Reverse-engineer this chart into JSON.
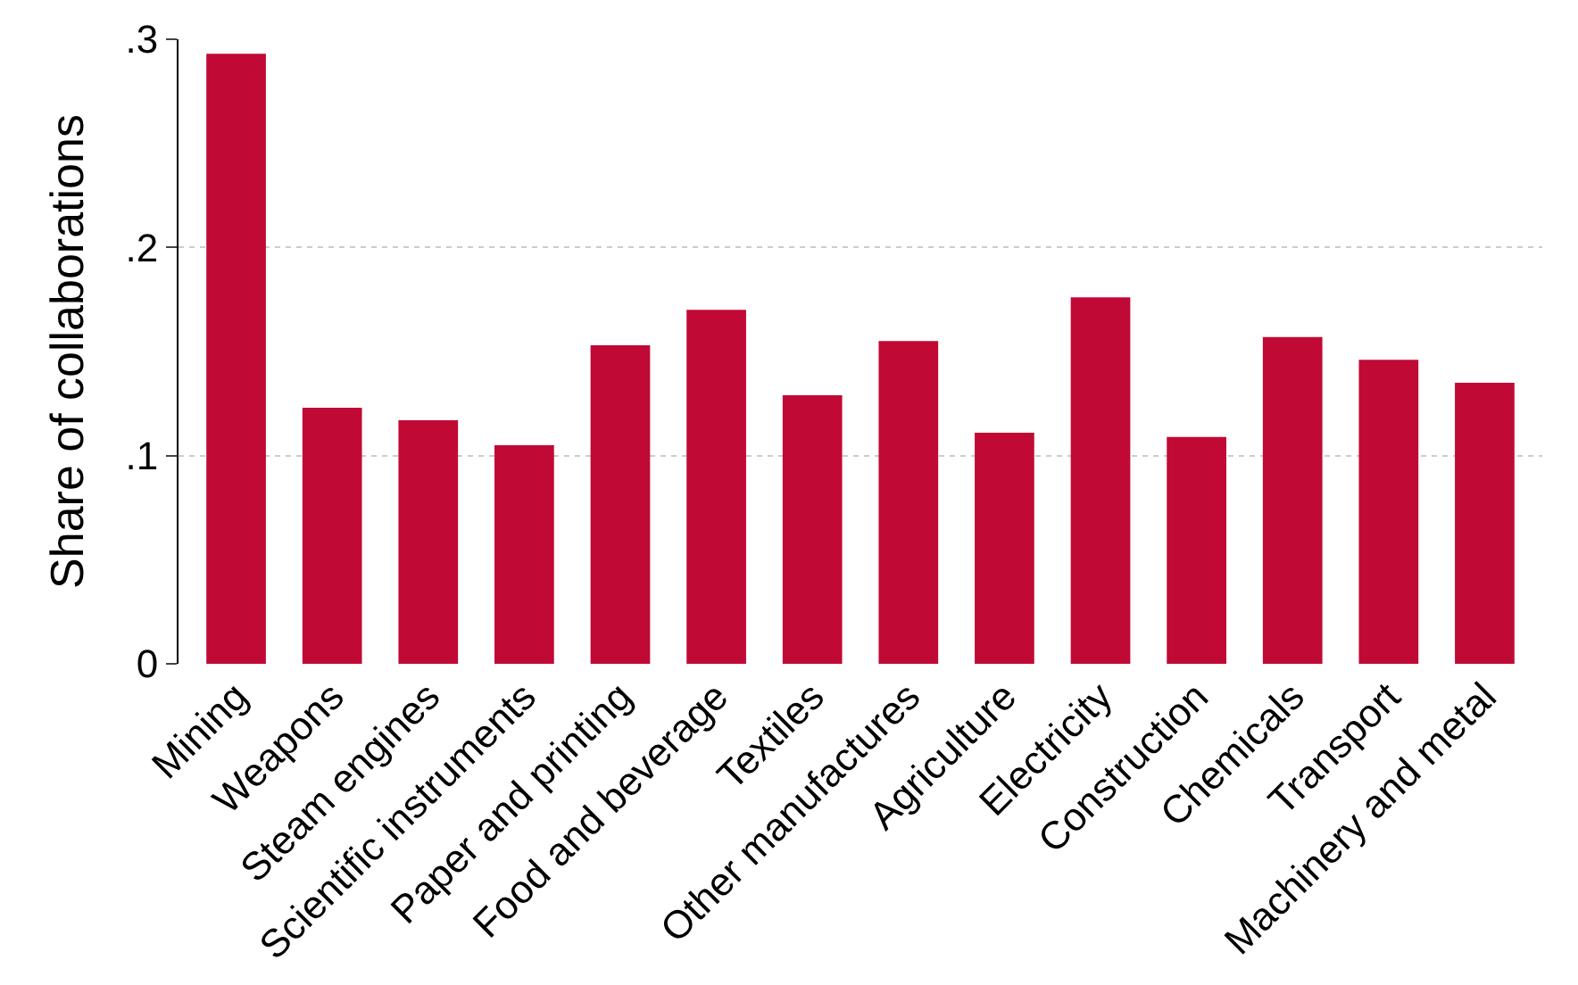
{
  "chart_data": {
    "type": "bar",
    "ylabel": "Share of collaborations",
    "categories": [
      "Mining",
      "Weapons",
      "Steam engines",
      "Scientific instruments",
      "Paper and printing",
      "Food and beverage",
      "Textiles",
      "Other manufactures",
      "Agriculture",
      "Electricity",
      "Construction",
      "Chemicals",
      "Transport",
      "Machinery and metal"
    ],
    "values": [
      0.293,
      0.123,
      0.117,
      0.105,
      0.153,
      0.17,
      0.129,
      0.155,
      0.111,
      0.176,
      0.109,
      0.157,
      0.146,
      0.135
    ],
    "color": "#c00a35",
    "ylim": [
      0,
      0.3
    ],
    "yticks": [
      {
        "value": 0,
        "label": "0"
      },
      {
        "value": 0.1,
        "label": ".1"
      },
      {
        "value": 0.2,
        "label": ".2"
      },
      {
        "value": 0.3,
        "label": ".3"
      }
    ],
    "grid": "y",
    "legend": false
  }
}
